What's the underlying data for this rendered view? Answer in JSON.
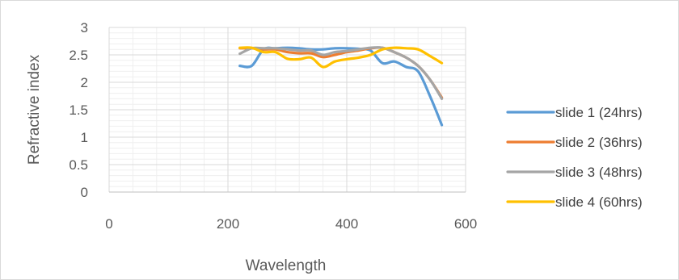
{
  "chart_data": {
    "type": "line",
    "title": "",
    "xlabel": "Wavelength",
    "ylabel": "Refractive index",
    "xlim": [
      0,
      600
    ],
    "ylim": [
      0,
      3
    ],
    "x_ticks": [
      0,
      200,
      400,
      600
    ],
    "y_ticks": [
      0,
      0.5,
      1,
      1.5,
      2,
      2.5,
      3
    ],
    "x_tick_labels": [
      "0",
      "200",
      "400",
      "600"
    ],
    "y_tick_labels": [
      "0",
      "0.5",
      "1",
      "1.5",
      "2",
      "2.5",
      "3"
    ],
    "grid": true,
    "legend_position": "right",
    "series": [
      {
        "name": "slide 1 (24hrs)",
        "color": "#5b9bd5",
        "x": [
          220,
          240,
          260,
          280,
          300,
          320,
          340,
          360,
          380,
          400,
          420,
          440,
          460,
          480,
          500,
          520,
          540,
          560
        ],
        "y": [
          2.3,
          2.3,
          2.6,
          2.62,
          2.63,
          2.62,
          2.6,
          2.6,
          2.62,
          2.62,
          2.61,
          2.58,
          2.35,
          2.38,
          2.28,
          2.2,
          1.75,
          1.22
        ]
      },
      {
        "name": "slide 2 (36hrs)",
        "color": "#ed7d31",
        "x": [
          220,
          240,
          260,
          280,
          300,
          320,
          340,
          360,
          380,
          400,
          420,
          440,
          460,
          480,
          500,
          520,
          540,
          560
        ],
        "y": [
          2.62,
          2.62,
          2.6,
          2.6,
          2.55,
          2.53,
          2.53,
          2.46,
          2.5,
          2.55,
          2.58,
          2.62,
          2.63,
          2.55,
          2.45,
          2.3,
          2.05,
          1.72
        ]
      },
      {
        "name": "slide 3 (48hrs)",
        "color": "#a5a5a5",
        "x": [
          220,
          240,
          260,
          280,
          300,
          320,
          340,
          360,
          380,
          400,
          420,
          440,
          460,
          480,
          500,
          520,
          540,
          560
        ],
        "y": [
          2.52,
          2.62,
          2.62,
          2.62,
          2.6,
          2.58,
          2.58,
          2.5,
          2.55,
          2.57,
          2.6,
          2.63,
          2.63,
          2.55,
          2.45,
          2.3,
          2.05,
          1.7
        ]
      },
      {
        "name": "slide 4 (60hrs)",
        "color": "#ffc000",
        "x": [
          220,
          240,
          260,
          280,
          300,
          320,
          340,
          360,
          380,
          400,
          420,
          440,
          460,
          480,
          500,
          520,
          540,
          560
        ],
        "y": [
          2.63,
          2.63,
          2.55,
          2.55,
          2.43,
          2.42,
          2.45,
          2.28,
          2.38,
          2.42,
          2.45,
          2.5,
          2.6,
          2.63,
          2.62,
          2.6,
          2.48,
          2.35
        ]
      }
    ]
  }
}
